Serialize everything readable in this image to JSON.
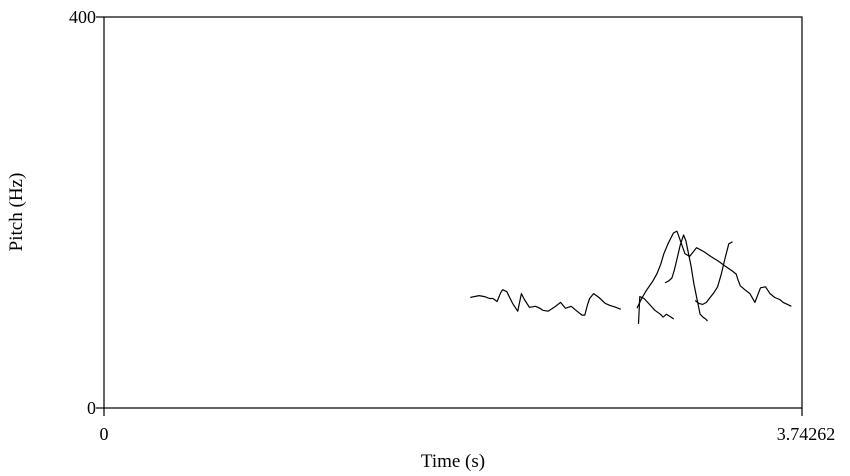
{
  "chart_data": {
    "type": "line",
    "xlabel": "Time (s)",
    "ylabel": "Pitch (Hz)",
    "xlim": [
      0,
      3.74262
    ],
    "ylim": [
      0,
      400
    ],
    "x_tick_labels": [
      "0",
      "3.74262"
    ],
    "y_tick_labels": [
      "0",
      "400"
    ],
    "grid": false,
    "line_color": "#000000",
    "series": [
      {
        "x": [
          1.964,
          1.985,
          2.011,
          2.04,
          2.067,
          2.086,
          2.108,
          2.127,
          2.137,
          2.16,
          2.191,
          2.218,
          2.238,
          2.254,
          2.281,
          2.314,
          2.337,
          2.353,
          2.381,
          2.414,
          2.448,
          2.474,
          2.505,
          2.536,
          2.563,
          2.578,
          2.593,
          2.604,
          2.625,
          2.654,
          2.688,
          2.713,
          2.745,
          2.771
        ],
        "y": [
          113,
          114,
          115,
          114,
          112,
          112,
          109,
          118,
          121,
          119,
          107,
          99,
          117,
          111,
          103,
          104,
          102,
          100,
          99,
          103,
          108,
          102,
          104,
          99,
          95,
          95,
          106,
          112,
          117,
          113,
          107,
          105,
          103,
          101
        ]
      },
      {
        "x": [
          2.858,
          2.88,
          2.907,
          2.94,
          2.964,
          2.985,
          3.002,
          3.024,
          3.053,
          3.072,
          3.089,
          3.115,
          3.14,
          3.177,
          3.216,
          3.254,
          3.296,
          3.332,
          3.37,
          3.39,
          3.398,
          3.412,
          3.436,
          3.463,
          3.49,
          3.52,
          3.547,
          3.571,
          3.597,
          3.623,
          3.642,
          3.665,
          3.686
        ],
        "y": [
          102,
          111,
          120,
          129,
          137,
          147,
          158,
          168,
          179,
          181,
          172,
          158,
          155,
          164,
          160,
          155,
          150,
          145,
          140,
          137,
          132,
          125,
          121,
          117,
          108,
          123,
          124,
          117,
          113,
          111,
          108,
          106,
          104
        ]
      },
      {
        "x": [
          2.866,
          2.873,
          2.896,
          2.925,
          2.954,
          2.983,
          2.998,
          3.016,
          3.04,
          3.055
        ],
        "y": [
          86,
          114,
          112,
          106,
          100,
          96,
          93,
          96,
          93,
          91
        ]
      },
      {
        "x": [
          3.008,
          3.028,
          3.045,
          3.058,
          3.072,
          3.09,
          3.108,
          3.12,
          3.132,
          3.148,
          3.163,
          3.181,
          3.196,
          3.211,
          3.226,
          3.236
        ],
        "y": [
          128,
          130,
          133,
          141,
          152,
          167,
          177,
          171,
          160,
          145,
          127,
          110,
          96,
          93,
          91,
          89
        ]
      },
      {
        "x": [
          3.17,
          3.19,
          3.21,
          3.23,
          3.25,
          3.27,
          3.29,
          3.31,
          3.33,
          3.35,
          3.37
        ],
        "y": [
          110,
          107,
          106,
          108,
          113,
          118,
          124,
          137,
          153,
          168,
          170
        ]
      }
    ]
  }
}
